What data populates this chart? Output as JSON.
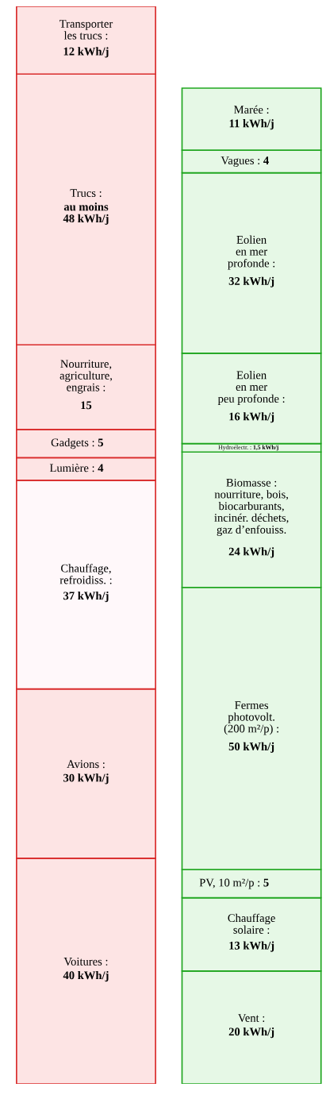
{
  "chart_data": {
    "type": "bar",
    "stacked": true,
    "categories": [
      null,
      null
    ],
    "ylim": [
      0,
      191
    ],
    "series": [
      {
        "name": "Voitures :",
        "color": "#fde4e4",
        "values": [
          40,
          null
        ],
        "value_labels": [
          "40 kWh/j",
          null
        ]
      },
      {
        "name": "Avions :",
        "color": "#fde4e4",
        "values": [
          30,
          null
        ],
        "value_labels": [
          "30 kWh/j",
          null
        ]
      },
      {
        "name": "Chauffage,\nrefroidiss. :",
        "color": "#fff8fa",
        "values": [
          37,
          null
        ],
        "value_labels": [
          "37 kWh/j",
          null
        ]
      },
      {
        "name": "Lumière :",
        "color": "#fde4e4",
        "values": [
          4,
          null
        ],
        "value_labels": [
          "4",
          null
        ]
      },
      {
        "name": "Gadgets :",
        "color": "#fde4e4",
        "values": [
          5,
          null
        ],
        "value_labels": [
          "5",
          null
        ]
      },
      {
        "name": "Nourriture,\nagriculture,\nengrais :",
        "color": "#fde4e4",
        "values": [
          15,
          null
        ],
        "value_labels": [
          "15",
          null
        ]
      },
      {
        "name": "Trucs :",
        "color": "#fde4e4",
        "values": [
          48,
          null
        ],
        "value_labels": [
          "au moins\n48 kWh/j",
          null
        ]
      },
      {
        "name": "Transporter\nles trucs :",
        "color": "#fde4e4",
        "values": [
          12,
          null
        ],
        "value_labels": [
          "12 kWh/j",
          null
        ]
      },
      {
        "name": "Vent :",
        "color": "#e6f8e6",
        "values": [
          null,
          20
        ],
        "value_labels": [
          null,
          "20 kWh/j"
        ]
      },
      {
        "name": "Chauffage\nsolaire :",
        "color": "#e6f8e6",
        "values": [
          null,
          13
        ],
        "value_labels": [
          null,
          "13 kWh/j"
        ]
      },
      {
        "name": "PV, 10 m²/p :",
        "color": "#e6f8e6",
        "values": [
          null,
          5
        ],
        "value_labels": [
          null,
          "5"
        ]
      },
      {
        "name": "Fermes\nphotovolt.\n(200 m²/p) :",
        "color": "#e6f8e6",
        "values": [
          null,
          50
        ],
        "value_labels": [
          null,
          "50 kWh/j"
        ]
      },
      {
        "name": "Biomasse :\nnourriture, bois,\nbiocarburants,\nincinér. déchets,\ngaz d’enfouiss.",
        "color": "#e6f8e6",
        "values": [
          null,
          24
        ],
        "value_labels": [
          null,
          "24 kWh/j"
        ]
      },
      {
        "name": "Hydroélectr. :",
        "color": "#e6f8e6",
        "values": [
          null,
          1.5
        ],
        "value_labels": [
          null,
          "1,5 kWh/j"
        ]
      },
      {
        "name": "Eolien\nen mer\npeu profonde :",
        "color": "#e6f8e6",
        "values": [
          null,
          16
        ],
        "value_labels": [
          null,
          "16 kWh/j"
        ]
      },
      {
        "name": "Eolien\nen mer\nprofonde :",
        "color": "#e6f8e6",
        "values": [
          null,
          32
        ],
        "value_labels": [
          null,
          "32 kWh/j"
        ]
      },
      {
        "name": "Vagues :",
        "color": "#e6f8e6",
        "values": [
          null,
          4
        ],
        "value_labels": [
          null,
          "4"
        ]
      },
      {
        "name": "Marée :",
        "color": "#e6f8e6",
        "values": [
          null,
          11
        ],
        "value_labels": [
          null,
          "11 kWh/j"
        ]
      }
    ]
  }
}
